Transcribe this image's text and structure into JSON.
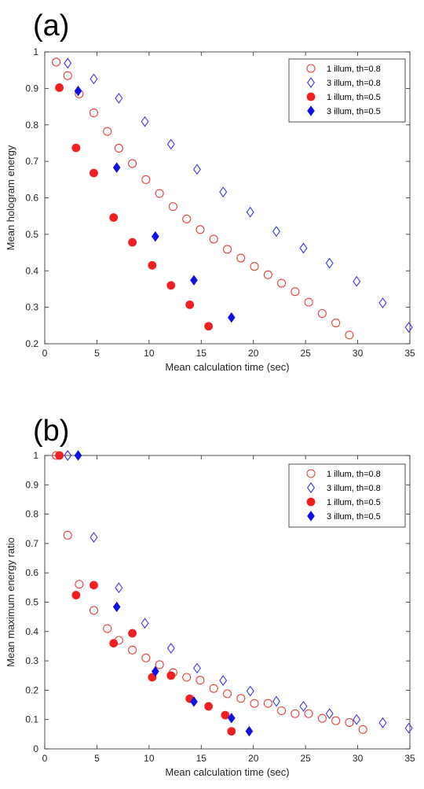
{
  "chart_data": [
    {
      "type": "scatter",
      "panel_label": "(a)",
      "xlabel": "Mean calculation time (sec)",
      "ylabel": "Mean hologram energy",
      "xlim": [
        0,
        35
      ],
      "ylim": [
        0.2,
        1
      ],
      "xticks": [
        0,
        5,
        10,
        15,
        20,
        25,
        30,
        35
      ],
      "yticks": [
        0.2,
        0.3,
        0.4,
        0.5,
        0.6,
        0.7,
        0.8,
        0.9,
        1
      ],
      "legend_position": "top-right",
      "series": [
        {
          "name": "1 illum, th=0.8",
          "marker": "circle",
          "filled": false,
          "color": "#e8403a",
          "x": [
            1.1,
            2.2,
            3.3,
            4.7,
            6.0,
            7.1,
            8.4,
            9.7,
            11.0,
            12.3,
            13.6,
            14.9,
            16.2,
            17.5,
            18.8,
            20.1,
            21.4,
            22.7,
            24.0,
            25.3,
            26.6,
            27.9,
            29.2
          ],
          "y": [
            0.972,
            0.935,
            0.885,
            0.833,
            0.782,
            0.736,
            0.694,
            0.65,
            0.612,
            0.576,
            0.542,
            0.513,
            0.487,
            0.459,
            0.435,
            0.412,
            0.389,
            0.366,
            0.343,
            0.314,
            0.283,
            0.257,
            0.224
          ]
        },
        {
          "name": "3 illum, th=0.8",
          "marker": "diamond",
          "filled": false,
          "color": "#3a3ae8",
          "x": [
            2.2,
            4.7,
            7.1,
            9.6,
            12.1,
            14.6,
            17.1,
            19.7,
            22.2,
            24.8,
            27.3,
            29.9,
            32.4,
            34.9
          ],
          "y": [
            0.969,
            0.926,
            0.873,
            0.809,
            0.747,
            0.678,
            0.616,
            0.561,
            0.508,
            0.462,
            0.421,
            0.371,
            0.312,
            0.245
          ]
        },
        {
          "name": "1 illum, th=0.5",
          "marker": "circle",
          "filled": true,
          "color": "#f02020",
          "x": [
            1.4,
            3.0,
            4.7,
            6.6,
            8.4,
            10.3,
            12.1,
            13.9,
            15.7
          ],
          "y": [
            0.902,
            0.737,
            0.668,
            0.546,
            0.478,
            0.415,
            0.36,
            0.307,
            0.248
          ]
        },
        {
          "name": "3 illum, th=0.5",
          "marker": "diamond",
          "filled": true,
          "color": "#1010e0",
          "x": [
            3.2,
            6.9,
            10.6,
            14.3,
            17.9
          ],
          "y": [
            0.893,
            0.683,
            0.494,
            0.374,
            0.272
          ]
        }
      ]
    },
    {
      "type": "scatter",
      "panel_label": "(b)",
      "xlabel": "Mean calculation time (sec)",
      "ylabel": "Mean maximum energy ratio",
      "xlim": [
        0,
        35
      ],
      "ylim": [
        0,
        1
      ],
      "xticks": [
        0,
        5,
        10,
        15,
        20,
        25,
        30,
        35
      ],
      "yticks": [
        0,
        0.1,
        0.2,
        0.3,
        0.4,
        0.5,
        0.6,
        0.7,
        0.8,
        0.9,
        1
      ],
      "legend_position": "top-right",
      "series": [
        {
          "name": "1 illum, th=0.8",
          "marker": "circle",
          "filled": false,
          "color": "#e8403a",
          "x": [
            1.1,
            2.2,
            3.3,
            4.7,
            6.0,
            7.1,
            8.4,
            9.7,
            11.0,
            12.3,
            13.6,
            14.9,
            16.2,
            17.5,
            18.8,
            20.1,
            21.4,
            22.7,
            24.0,
            25.3,
            26.6,
            27.9,
            29.2,
            30.5
          ],
          "y": [
            1.0,
            0.728,
            0.561,
            0.472,
            0.41,
            0.37,
            0.337,
            0.31,
            0.287,
            0.26,
            0.244,
            0.234,
            0.206,
            0.188,
            0.172,
            0.155,
            0.155,
            0.13,
            0.12,
            0.12,
            0.104,
            0.096,
            0.09,
            0.066
          ]
        },
        {
          "name": "3 illum, th=0.8",
          "marker": "diamond",
          "filled": false,
          "color": "#3a3ae8",
          "x": [
            2.2,
            4.7,
            7.1,
            9.6,
            12.1,
            14.6,
            17.1,
            19.7,
            22.2,
            24.8,
            27.3,
            29.9,
            32.4,
            34.9
          ],
          "y": [
            1.0,
            0.721,
            0.549,
            0.428,
            0.343,
            0.275,
            0.233,
            0.197,
            0.162,
            0.145,
            0.12,
            0.1,
            0.089,
            0.071
          ]
        },
        {
          "name": "1 illum, th=0.5",
          "marker": "circle",
          "filled": true,
          "color": "#f02020",
          "x": [
            1.4,
            3.0,
            4.7,
            6.6,
            8.4,
            10.3,
            12.1,
            13.9,
            15.7,
            17.3,
            17.9
          ],
          "y": [
            1.0,
            0.524,
            0.558,
            0.36,
            0.394,
            0.244,
            0.25,
            0.171,
            0.145,
            0.115,
            0.06
          ]
        },
        {
          "name": "3 illum, th=0.5",
          "marker": "diamond",
          "filled": true,
          "color": "#1010e0",
          "x": [
            3.2,
            6.9,
            10.6,
            14.3,
            17.9,
            19.6
          ],
          "y": [
            1.0,
            0.484,
            0.264,
            0.161,
            0.105,
            0.06
          ]
        }
      ]
    }
  ]
}
